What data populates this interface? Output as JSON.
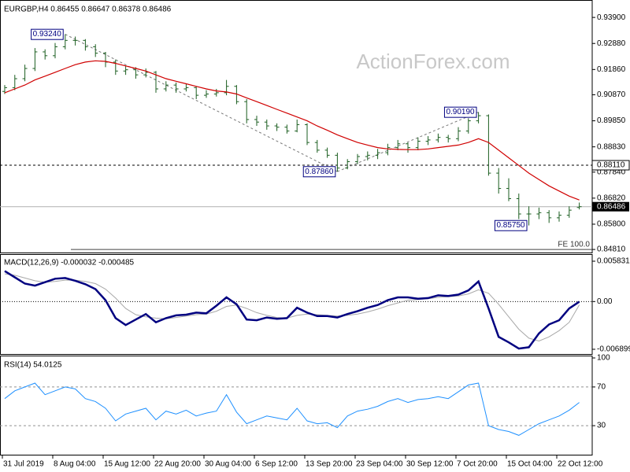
{
  "chart_data": [
    {
      "type": "ohlc",
      "title": "EURGBP,H4 0.86455 0.86647 0.86378 0.86486",
      "watermark": "ActionForex.com",
      "color": "#1b5e20",
      "categories": [
        "31 Jul 2019",
        null,
        null,
        null,
        null,
        "8 Aug 04:00",
        null,
        null,
        null,
        null,
        "15 Aug 12:00",
        null,
        null,
        null,
        null,
        "22 Aug 20:00",
        null,
        null,
        null,
        null,
        "30 Aug 04:00",
        null,
        null,
        null,
        null,
        "6 Sep 12:00",
        null,
        null,
        null,
        null,
        "13 Sep 20:00",
        null,
        null,
        null,
        null,
        "23 Sep 04:00",
        null,
        null,
        null,
        null,
        "30 Sep 12:00",
        null,
        null,
        null,
        null,
        "7 Oct 20:00",
        null,
        null,
        null,
        null,
        "15 Oct 04:00",
        null,
        null,
        null,
        null,
        "22 Oct 12:00",
        null,
        null
      ],
      "open": [
        0.91,
        0.9115,
        0.915,
        0.919,
        0.9255,
        0.924,
        0.9275,
        0.93,
        0.93,
        0.9275,
        0.925,
        0.9215,
        0.918,
        0.9185,
        0.9165,
        0.9175,
        0.911,
        0.9125,
        0.911,
        0.9115,
        0.9085,
        0.909,
        0.9095,
        0.912,
        0.906,
        0.899,
        0.898,
        0.8965,
        0.896,
        0.8945,
        0.897,
        0.89,
        0.887,
        0.885,
        0.88,
        0.8825,
        0.8845,
        0.885,
        0.886,
        0.888,
        0.8895,
        0.888,
        0.8905,
        0.891,
        0.892,
        0.8915,
        0.8945,
        0.8985,
        0.9005,
        0.878,
        0.872,
        0.868,
        0.862,
        0.862,
        0.8625,
        0.8605,
        0.8615,
        0.86455
      ],
      "high": [
        0.9125,
        0.9165,
        0.9205,
        0.927,
        0.9265,
        0.929,
        0.9324,
        0.9315,
        0.9305,
        0.9285,
        0.9255,
        0.9225,
        0.92,
        0.9195,
        0.919,
        0.918,
        0.914,
        0.9135,
        0.913,
        0.912,
        0.9105,
        0.911,
        0.9145,
        0.9125,
        0.907,
        0.9005,
        0.899,
        0.8975,
        0.897,
        0.899,
        0.8975,
        0.891,
        0.888,
        0.886,
        0.8835,
        0.8855,
        0.8865,
        0.8875,
        0.8895,
        0.891,
        0.89,
        0.892,
        0.8925,
        0.8935,
        0.893,
        0.896,
        0.8995,
        0.9019,
        0.901,
        0.88,
        0.876,
        0.87,
        0.865,
        0.8645,
        0.8635,
        0.863,
        0.865,
        0.86647
      ],
      "low": [
        0.909,
        0.9105,
        0.914,
        0.918,
        0.9225,
        0.923,
        0.9265,
        0.928,
        0.926,
        0.9235,
        0.9195,
        0.9165,
        0.9165,
        0.915,
        0.9155,
        0.9095,
        0.91,
        0.9095,
        0.91,
        0.907,
        0.9075,
        0.908,
        0.9085,
        0.905,
        0.8975,
        0.8965,
        0.895,
        0.8945,
        0.8935,
        0.894,
        0.889,
        0.886,
        0.884,
        0.8786,
        0.8795,
        0.8815,
        0.883,
        0.8835,
        0.885,
        0.887,
        0.886,
        0.887,
        0.889,
        0.89,
        0.89,
        0.8905,
        0.8935,
        0.8975,
        0.877,
        0.87,
        0.867,
        0.86,
        0.8575,
        0.86,
        0.8585,
        0.859,
        0.8605,
        0.86378
      ],
      "close": [
        0.9115,
        0.915,
        0.919,
        0.9255,
        0.924,
        0.9275,
        0.93,
        0.93,
        0.9275,
        0.925,
        0.9215,
        0.918,
        0.9185,
        0.9165,
        0.9175,
        0.911,
        0.9125,
        0.911,
        0.9115,
        0.9085,
        0.909,
        0.9095,
        0.912,
        0.906,
        0.899,
        0.898,
        0.8965,
        0.896,
        0.8945,
        0.897,
        0.89,
        0.887,
        0.885,
        0.88,
        0.8825,
        0.8845,
        0.885,
        0.886,
        0.888,
        0.8895,
        0.888,
        0.8905,
        0.891,
        0.892,
        0.8915,
        0.8945,
        0.8985,
        0.9005,
        0.878,
        0.872,
        0.868,
        0.862,
        0.862,
        0.8625,
        0.8605,
        0.8615,
        0.8635,
        0.86486
      ],
      "ma": {
        "color": "#d00000",
        "values": [
          0.9095,
          0.911,
          0.9125,
          0.9145,
          0.916,
          0.9175,
          0.919,
          0.9205,
          0.9215,
          0.922,
          0.9218,
          0.921,
          0.92,
          0.919,
          0.918,
          0.9165,
          0.915,
          0.914,
          0.913,
          0.912,
          0.911,
          0.9102,
          0.9098,
          0.909,
          0.9075,
          0.906,
          0.9045,
          0.903,
          0.9015,
          0.9,
          0.8985,
          0.8965,
          0.8948,
          0.893,
          0.8915,
          0.89,
          0.889,
          0.888,
          0.8875,
          0.8873,
          0.8872,
          0.8872,
          0.8875,
          0.888,
          0.8885,
          0.889,
          0.89,
          0.8915,
          0.89,
          0.887,
          0.884,
          0.881,
          0.878,
          0.8755,
          0.873,
          0.871,
          0.869,
          0.8675
        ]
      },
      "ylim": [
        0.8469,
        0.9449
      ],
      "yticks": [
        {
          "value": 0.939,
          "label": "0.93900"
        },
        {
          "value": 0.9288,
          "label": "0.92880"
        },
        {
          "value": 0.9186,
          "label": "0.91860"
        },
        {
          "value": 0.9087,
          "label": "0.90870"
        },
        {
          "value": 0.8985,
          "label": "0.89850"
        },
        {
          "value": 0.8883,
          "label": "0.88830"
        },
        {
          "value": 0.8784,
          "label": "0.87840"
        },
        {
          "value": 0.8682,
          "label": "0.86820"
        },
        {
          "value": 0.858,
          "label": "0.85800"
        },
        {
          "value": 0.8481,
          "label": "0.84810"
        }
      ],
      "grid": false,
      "annotations": [
        {
          "value": 0.9324,
          "label": "0.93240"
        },
        {
          "value": 0.8786,
          "label": "0.87860"
        },
        {
          "value": 0.9019,
          "label": "0.90190"
        },
        {
          "value": 0.8575,
          "label": "0.85750"
        }
      ],
      "level": {
        "value": 0.8811,
        "label": "0.88110"
      },
      "last_price": {
        "value": 0.86486,
        "label": "0.86486"
      },
      "fe": {
        "value": 0.8481,
        "label": "FE 100.0"
      }
    },
    {
      "type": "macd",
      "title": "MACD(12,26,9) -0.000032 -0.000485",
      "series": [
        {
          "color": "#a8a8a8",
          "width": 1,
          "values": [
            0.004,
            0.0038,
            0.0034,
            0.003,
            0.0028,
            0.0029,
            0.0031,
            0.0031,
            0.0029,
            0.0026,
            0.0018,
            0.0005,
            -0.001,
            -0.0019,
            -0.0022,
            -0.0024,
            -0.0025,
            -0.0023,
            -0.0021,
            -0.0019,
            -0.0018,
            -0.0014,
            -0.0007,
            -0.0005,
            -0.001,
            -0.0016,
            -0.002,
            -0.0023,
            -0.0024,
            -0.002,
            -0.0018,
            -0.0019,
            -0.002,
            -0.0021,
            -0.002,
            -0.0018,
            -0.0015,
            -0.0011,
            -0.0006,
            -0.0002,
            0.0002,
            0.0003,
            0.0004,
            0.0006,
            0.0007,
            0.0008,
            0.0011,
            0.0017,
            0.0012,
            -0.0004,
            -0.0022,
            -0.004,
            -0.0053,
            -0.0057,
            -0.0051,
            -0.0042,
            -0.003,
            -0.000485
          ]
        },
        {
          "color": "#000080",
          "width": 2.5,
          "values": [
            0.0044,
            0.0035,
            0.0026,
            0.0023,
            0.0028,
            0.0033,
            0.0034,
            0.003,
            0.0025,
            0.0018,
            0.0002,
            -0.0024,
            -0.0034,
            -0.0026,
            -0.0018,
            -0.003,
            -0.0024,
            -0.002,
            -0.0019,
            -0.0016,
            -0.0017,
            -0.0006,
            0.0006,
            -0.0004,
            -0.0026,
            -0.0027,
            -0.0023,
            -0.0025,
            -0.0024,
            -0.0009,
            -0.0016,
            -0.0021,
            -0.0021,
            -0.0023,
            -0.0018,
            -0.0014,
            -0.0009,
            -0.0005,
            0.0002,
            0.0006,
            0.0006,
            0.0004,
            0.0005,
            0.0009,
            0.0008,
            0.001,
            0.0016,
            0.0029,
            -0.001,
            -0.0051,
            -0.0059,
            -0.0068,
            -0.0066,
            -0.0046,
            -0.0033,
            -0.0027,
            -0.001,
            -3.2e-05
          ]
        }
      ],
      "ylim": [
        -0.00758,
        0.00663
      ],
      "yticks": [
        0.005831,
        {
          "value": 0,
          "label": "0.00"
        },
        -0.006899
      ],
      "zero_line": true
    },
    {
      "type": "rsi",
      "title": "RSI(14) 54.0125",
      "color": "#1e90ff",
      "values": [
        58,
        66,
        70,
        74,
        62,
        66,
        70,
        68,
        58,
        55,
        48,
        35,
        42,
        45,
        48,
        36,
        45,
        42,
        46,
        40,
        43,
        45,
        62,
        44,
        32,
        36,
        40,
        38,
        36,
        48,
        35,
        32,
        33,
        28,
        40,
        45,
        47,
        50,
        55,
        58,
        54,
        57,
        58,
        60,
        58,
        65,
        72,
        74,
        30,
        26,
        24,
        20,
        26,
        32,
        36,
        40,
        46,
        54.0125
      ],
      "ylim": [
        0,
        100
      ],
      "yticks": [
        100,
        70,
        30
      ],
      "grid": true
    }
  ]
}
